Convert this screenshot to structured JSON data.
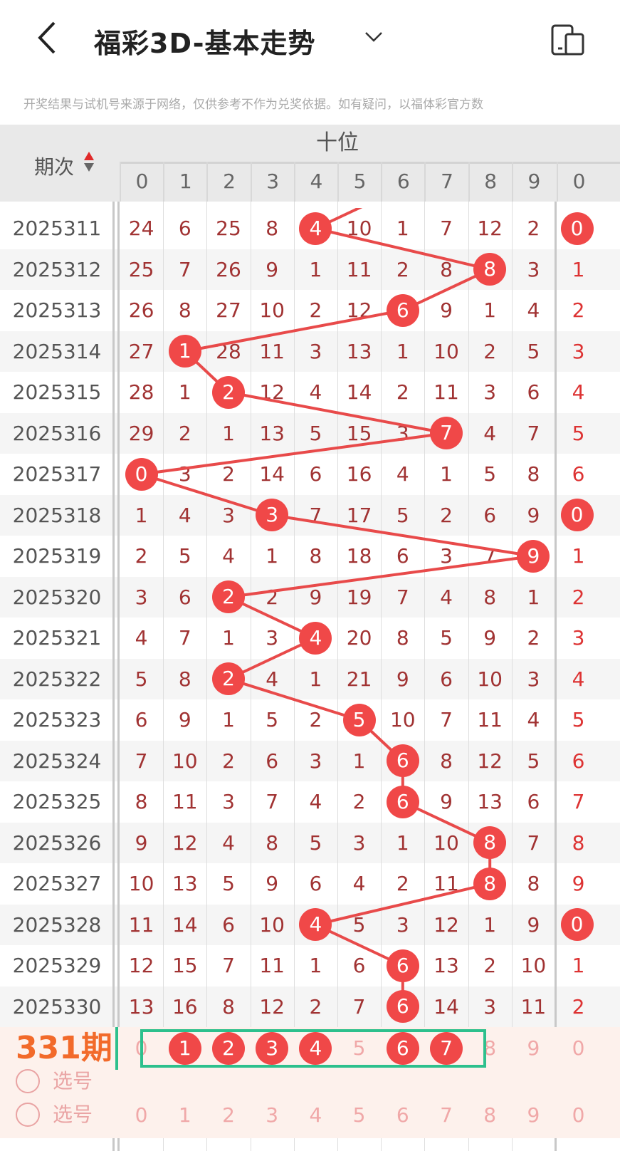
{
  "header": {
    "title": "福彩3D-基本走势",
    "back_icon": "chevron-left-icon",
    "dropdown_icon": "chevron-down-icon",
    "device_icon": "phone-tablet-icon"
  },
  "notice": "开奖结果与试机号来源于网络，仅供参考不作为兑奖依据。如有疑问，以福体彩官方数",
  "table": {
    "issue_header": "期次",
    "group_label": "十位",
    "digits": [
      "0",
      "1",
      "2",
      "3",
      "4",
      "5",
      "6",
      "7",
      "8",
      "9"
    ],
    "next_group_first_digit": "0",
    "colors": {
      "ball": "#f04848",
      "miss_number": "#a13333",
      "highlight_box": "#2dc08d",
      "issue_highlight": "#f26a2a"
    },
    "rows": [
      {
        "issue": "2025311",
        "values": [
          24,
          6,
          25,
          8,
          4,
          10,
          1,
          7,
          12,
          2
        ],
        "hit": 4,
        "next": "0",
        "next_hit": true
      },
      {
        "issue": "2025312",
        "values": [
          25,
          7,
          26,
          9,
          1,
          11,
          2,
          8,
          8,
          3
        ],
        "hit": 8,
        "next": "1",
        "next_hit": false
      },
      {
        "issue": "2025313",
        "values": [
          26,
          8,
          27,
          10,
          2,
          12,
          6,
          9,
          1,
          4
        ],
        "hit": 6,
        "next": "2",
        "next_hit": false
      },
      {
        "issue": "2025314",
        "values": [
          27,
          1,
          28,
          11,
          3,
          13,
          1,
          10,
          2,
          5
        ],
        "hit": 1,
        "next": "3",
        "next_hit": false
      },
      {
        "issue": "2025315",
        "values": [
          28,
          1,
          2,
          12,
          4,
          14,
          2,
          11,
          3,
          6
        ],
        "hit": 2,
        "next": "4",
        "next_hit": false
      },
      {
        "issue": "2025316",
        "values": [
          29,
          2,
          1,
          13,
          5,
          15,
          3,
          7,
          4,
          7
        ],
        "hit": 7,
        "next": "5",
        "next_hit": false
      },
      {
        "issue": "2025317",
        "values": [
          0,
          3,
          2,
          14,
          6,
          16,
          4,
          1,
          5,
          8
        ],
        "hit": 0,
        "next": "6",
        "next_hit": false
      },
      {
        "issue": "2025318",
        "values": [
          1,
          4,
          3,
          3,
          7,
          17,
          5,
          2,
          6,
          9
        ],
        "hit": 3,
        "next": "0",
        "next_hit": true
      },
      {
        "issue": "2025319",
        "values": [
          2,
          5,
          4,
          1,
          8,
          18,
          6,
          3,
          7,
          9
        ],
        "hit": 9,
        "next": "1",
        "next_hit": false
      },
      {
        "issue": "2025320",
        "values": [
          3,
          6,
          2,
          2,
          9,
          19,
          7,
          4,
          8,
          1
        ],
        "hit": 2,
        "next": "2",
        "next_hit": false
      },
      {
        "issue": "2025321",
        "values": [
          4,
          7,
          1,
          3,
          4,
          20,
          8,
          5,
          9,
          2
        ],
        "hit": 4,
        "next": "3",
        "next_hit": false
      },
      {
        "issue": "2025322",
        "values": [
          5,
          8,
          2,
          4,
          1,
          21,
          9,
          6,
          10,
          3
        ],
        "hit": 2,
        "next": "4",
        "next_hit": false
      },
      {
        "issue": "2025323",
        "values": [
          6,
          9,
          1,
          5,
          2,
          5,
          10,
          7,
          11,
          4
        ],
        "hit": 5,
        "next": "5",
        "next_hit": false
      },
      {
        "issue": "2025324",
        "values": [
          7,
          10,
          2,
          6,
          3,
          1,
          6,
          8,
          12,
          5
        ],
        "hit": 6,
        "next": "6",
        "next_hit": false
      },
      {
        "issue": "2025325",
        "values": [
          8,
          11,
          3,
          7,
          4,
          2,
          6,
          9,
          13,
          6
        ],
        "hit": 6,
        "next": "7",
        "next_hit": false
      },
      {
        "issue": "2025326",
        "values": [
          9,
          12,
          4,
          8,
          5,
          3,
          1,
          10,
          8,
          7
        ],
        "hit": 8,
        "next": "8",
        "next_hit": false
      },
      {
        "issue": "2025327",
        "values": [
          10,
          13,
          5,
          9,
          6,
          4,
          2,
          11,
          8,
          8
        ],
        "hit": 8,
        "next": "9",
        "next_hit": false
      },
      {
        "issue": "2025328",
        "values": [
          11,
          14,
          6,
          10,
          4,
          5,
          3,
          12,
          1,
          9
        ],
        "hit": 4,
        "next": "0",
        "next_hit": true
      },
      {
        "issue": "2025329",
        "values": [
          12,
          15,
          7,
          11,
          1,
          6,
          6,
          13,
          2,
          10
        ],
        "hit": 6,
        "next": "1",
        "next_hit": false
      },
      {
        "issue": "2025330",
        "values": [
          13,
          16,
          8,
          12,
          2,
          7,
          6,
          14,
          3,
          11
        ],
        "hit": 6,
        "next": "2",
        "next_hit": false
      }
    ],
    "prediction_row": {
      "issue_label": "331期",
      "radio_label": "选号",
      "digits": [
        "0",
        "1",
        "2",
        "3",
        "4",
        "5",
        "6",
        "7",
        "8",
        "9"
      ],
      "selected": [
        1,
        2,
        3,
        4,
        6,
        7
      ],
      "next": "0"
    },
    "pick_row": {
      "radio_label": "选号",
      "digits": [
        "0",
        "1",
        "2",
        "3",
        "4",
        "5",
        "6",
        "7",
        "8",
        "9"
      ],
      "next": "0"
    }
  }
}
